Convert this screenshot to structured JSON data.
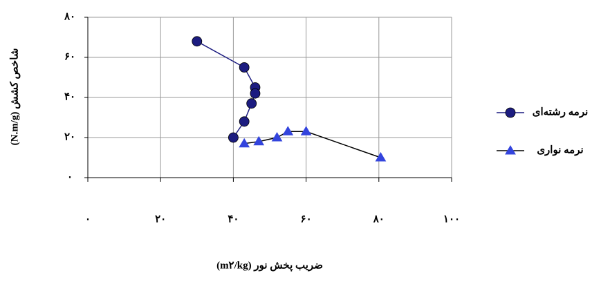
{
  "chart_data": {
    "type": "line",
    "x_label": "ضریب پخش نور (m۲/kg)",
    "y_label": "شاخص کشش (N.m/g)",
    "series": [
      {
        "name": "نرمه رشته‌ای",
        "color": "#1c1c80",
        "line_color": "#1c1c80",
        "marker": "circle",
        "x": [
          30,
          43,
          46,
          46,
          45,
          43,
          40
        ],
        "values": [
          68,
          55,
          45,
          42,
          37,
          28,
          20
        ]
      },
      {
        "name": "نرمه نواری",
        "color": "#3344dd",
        "line_color": "#000000",
        "marker": "triangle",
        "x": [
          43,
          47,
          52,
          55,
          60,
          80.5
        ],
        "values": [
          17,
          18,
          20,
          23,
          23,
          10
        ]
      }
    ],
    "xlim": [
      0,
      100
    ],
    "xticks": [
      {
        "value": 0,
        "label": "۰"
      },
      {
        "value": 20,
        "label": "۲۰"
      },
      {
        "value": 40,
        "label": "۴۰"
      },
      {
        "value": 60,
        "label": "۶۰"
      },
      {
        "value": 80,
        "label": "۸۰"
      },
      {
        "value": 100,
        "label": "۱۰۰"
      }
    ],
    "ylim": [
      0,
      80
    ],
    "yticks": [
      {
        "value": 0,
        "label": "۰"
      },
      {
        "value": 20,
        "label": "۲۰"
      },
      {
        "value": 40,
        "label": "۴۰"
      },
      {
        "value": 60,
        "label": "۶۰"
      },
      {
        "value": 80,
        "label": "۸۰"
      }
    ],
    "grid": true,
    "legend": "right"
  }
}
